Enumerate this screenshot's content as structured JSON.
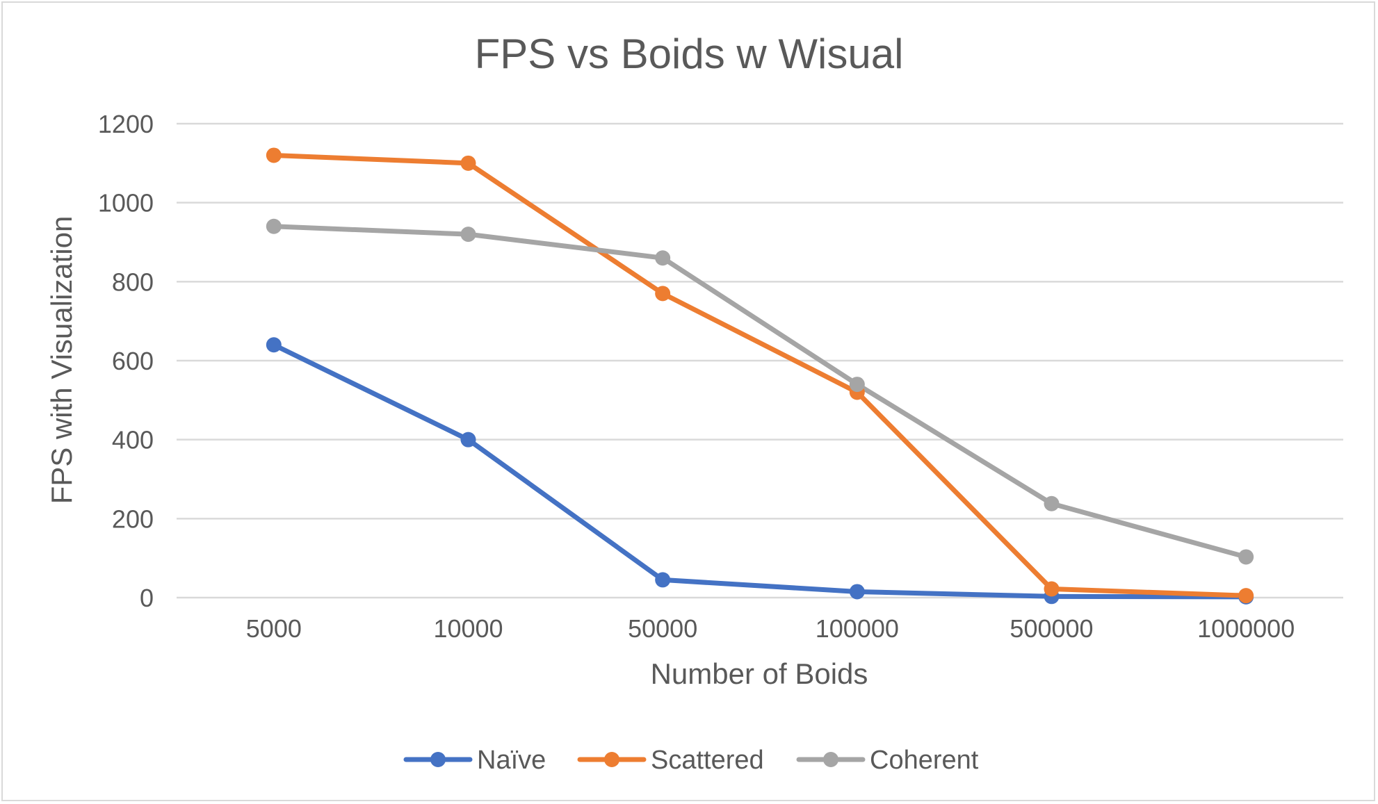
{
  "chart_data": {
    "type": "line",
    "title": "FPS vs Boids w Wisual",
    "xlabel": "Number of Boids",
    "ylabel": "FPS with Visualization",
    "categories": [
      "5000",
      "10000",
      "50000",
      "100000",
      "500000",
      "1000000"
    ],
    "y_ticks": [
      "0",
      "200",
      "400",
      "600",
      "800",
      "1000",
      "1200"
    ],
    "ylim": [
      0,
      1200
    ],
    "grid": true,
    "legend_position": "bottom",
    "series": [
      {
        "name": "Naïve",
        "color": "#4472C4",
        "values": [
          640,
          400,
          45,
          15,
          3,
          2
        ]
      },
      {
        "name": "Scattered",
        "color": "#ED7D31",
        "values": [
          1120,
          1100,
          770,
          520,
          22,
          5
        ]
      },
      {
        "name": "Coherent",
        "color": "#A5A5A5",
        "values": [
          940,
          920,
          860,
          540,
          238,
          103
        ]
      }
    ]
  }
}
